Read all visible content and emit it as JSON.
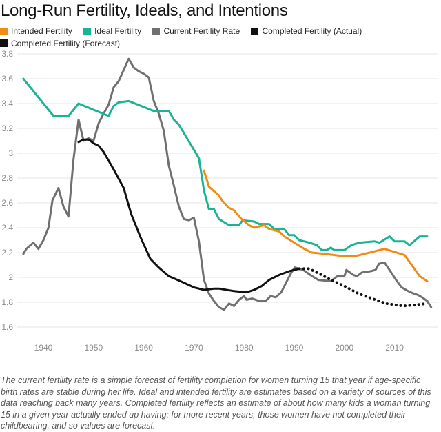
{
  "title": "Long-Run Fertility, Ideals, and Intentions",
  "note": "The current fertility rate is a simple forecast of fertility completion for women turning 15 that year if age-specific birth rates are stable during her life. Ideal and intended fertility are estimates based on a variety of sources of this data reaching back many years. Completed fertility reflects an estimate of about how many kids a woman turning 15 in a given year actually ended up having; for more recent years, those women have not completed their childbearing, and so values are forecast.",
  "chart_data": {
    "type": "line",
    "title": "Long-Run Fertility, Ideals, and Intentions",
    "xlabel": "",
    "ylabel": "",
    "xlim": [
      1935,
      2018
    ],
    "ylim": [
      1.5,
      3.8
    ],
    "xticks": [
      1940,
      1950,
      1960,
      1970,
      1980,
      1990,
      2000,
      2010
    ],
    "yticks": [
      1.6,
      1.8,
      2,
      2.2,
      2.4,
      2.6,
      2.8,
      3,
      3.2,
      3.4,
      3.6,
      3.8
    ],
    "ytick_labels": [
      "1.6",
      "1.8",
      "2",
      "2.2",
      "2.4",
      "2.6",
      "2.8",
      "3",
      "3.2",
      "3.4",
      "3.6",
      "3.8"
    ],
    "grid": true,
    "legend_position": "top-left",
    "series": [
      {
        "name": "Intended Fertility",
        "color": "#f28b14",
        "style": "solid",
        "points": [
          [
            1972,
            2.86
          ],
          [
            1973,
            2.73
          ],
          [
            1975,
            2.66
          ],
          [
            1975.6,
            2.62
          ],
          [
            1977,
            2.56
          ],
          [
            1978,
            2.54
          ],
          [
            1979.5,
            2.47
          ],
          [
            1981,
            2.42
          ],
          [
            1982,
            2.4
          ],
          [
            1984,
            2.42
          ],
          [
            1985,
            2.39
          ],
          [
            1987,
            2.37
          ],
          [
            1988,
            2.33
          ],
          [
            1992,
            2.23
          ],
          [
            1993.5,
            2.2
          ],
          [
            1996,
            2.19
          ],
          [
            2000,
            2.17
          ],
          [
            2002,
            2.17
          ],
          [
            2008,
            2.23
          ],
          [
            2012,
            2.18
          ],
          [
            2015,
            2.01
          ],
          [
            2016.5,
            1.97
          ]
        ]
      },
      {
        "name": "Ideal Fertility",
        "color": "#1ab394",
        "style": "solid",
        "points": [
          [
            1936,
            3.6
          ],
          [
            1942,
            3.3
          ],
          [
            1945,
            3.3
          ],
          [
            1947,
            3.4
          ],
          [
            1953,
            3.3
          ],
          [
            1954,
            3.38
          ],
          [
            1955,
            3.41
          ],
          [
            1957,
            3.42
          ],
          [
            1962,
            3.34
          ],
          [
            1965,
            3.34
          ],
          [
            1966,
            3.27
          ],
          [
            1967,
            3.23
          ],
          [
            1971,
            2.96
          ],
          [
            1972,
            2.7
          ],
          [
            1973,
            2.55
          ],
          [
            1974,
            2.55
          ],
          [
            1975,
            2.47
          ],
          [
            1977,
            2.42
          ],
          [
            1979,
            2.42
          ],
          [
            1979.7,
            2.46
          ],
          [
            1982,
            2.45
          ],
          [
            1983,
            2.43
          ],
          [
            1985,
            2.43
          ],
          [
            1986,
            2.39
          ],
          [
            1988,
            2.39
          ],
          [
            1989,
            2.34
          ],
          [
            1990,
            2.34
          ],
          [
            1991,
            2.3
          ],
          [
            1993,
            2.28
          ],
          [
            1994.5,
            2.26
          ],
          [
            1995.5,
            2.22
          ],
          [
            1996.5,
            2.22
          ],
          [
            1997.3,
            2.24
          ],
          [
            1998,
            2.22
          ],
          [
            2000,
            2.22
          ],
          [
            2001.4,
            2.26
          ],
          [
            2003,
            2.28
          ],
          [
            2006,
            2.29
          ],
          [
            2007,
            2.28
          ],
          [
            2009,
            2.33
          ],
          [
            2010,
            2.29
          ],
          [
            2012,
            2.29
          ],
          [
            2013,
            2.26
          ],
          [
            2015,
            2.33
          ],
          [
            2016.5,
            2.33
          ]
        ]
      },
      {
        "name": "Current Fertility Rate",
        "color": "#707070",
        "style": "solid",
        "points": [
          [
            1936,
            2.19
          ],
          [
            1936.6,
            2.23
          ],
          [
            1938,
            2.28
          ],
          [
            1939,
            2.23
          ],
          [
            1940,
            2.3
          ],
          [
            1941,
            2.4
          ],
          [
            1941.8,
            2.62
          ],
          [
            1943,
            2.72
          ],
          [
            1944,
            2.57
          ],
          [
            1945,
            2.49
          ],
          [
            1946,
            2.95
          ],
          [
            1947,
            3.27
          ],
          [
            1948,
            3.1
          ],
          [
            1949,
            3.12
          ],
          [
            1950,
            3.1
          ],
          [
            1951,
            3.24
          ],
          [
            1952,
            3.32
          ],
          [
            1953,
            3.39
          ],
          [
            1954,
            3.53
          ],
          [
            1955,
            3.58
          ],
          [
            1957,
            3.76
          ],
          [
            1958,
            3.69
          ],
          [
            1959,
            3.66
          ],
          [
            1960,
            3.64
          ],
          [
            1961,
            3.61
          ],
          [
            1962,
            3.42
          ],
          [
            1963,
            3.32
          ],
          [
            1964,
            3.18
          ],
          [
            1965,
            2.9
          ],
          [
            1966,
            2.74
          ],
          [
            1967,
            2.57
          ],
          [
            1968,
            2.47
          ],
          [
            1969,
            2.46
          ],
          [
            1970,
            2.48
          ],
          [
            1971,
            2.29
          ],
          [
            1972,
            1.98
          ],
          [
            1973,
            1.87
          ],
          [
            1974,
            1.81
          ],
          [
            1975,
            1.76
          ],
          [
            1976,
            1.74
          ],
          [
            1977,
            1.79
          ],
          [
            1978,
            1.77
          ],
          [
            1979,
            1.82
          ],
          [
            1980,
            1.85
          ],
          [
            1980.5,
            1.82
          ],
          [
            1981.6,
            1.83
          ],
          [
            1983,
            1.81
          ],
          [
            1984.3,
            1.81
          ],
          [
            1985.3,
            1.85
          ],
          [
            1986.3,
            1.84
          ],
          [
            1987.4,
            1.88
          ],
          [
            1988.4,
            1.96
          ],
          [
            1989.3,
            2.03
          ],
          [
            1990.1,
            2.08
          ],
          [
            1991.8,
            2.06
          ],
          [
            1993.2,
            2.02
          ],
          [
            1994.8,
            1.98
          ],
          [
            1997.3,
            1.97
          ],
          [
            1998.6,
            2.01
          ],
          [
            2000,
            2.01
          ],
          [
            2000.4,
            2.06
          ],
          [
            2001.8,
            2.02
          ],
          [
            2002.5,
            2.01
          ],
          [
            2003.5,
            2.04
          ],
          [
            2005.2,
            2.05
          ],
          [
            2006.2,
            2.06
          ],
          [
            2006.9,
            2.11
          ],
          [
            2008,
            2.12
          ],
          [
            2008.5,
            2.09
          ],
          [
            2010.3,
            1.98
          ],
          [
            2011.4,
            1.92
          ],
          [
            2012.7,
            1.89
          ],
          [
            2013.8,
            1.87
          ],
          [
            2014.6,
            1.86
          ],
          [
            2015.5,
            1.84
          ],
          [
            2016.5,
            1.81
          ],
          [
            2017.3,
            1.76
          ]
        ]
      },
      {
        "name": "Completed Fertility (Actual)",
        "color": "#111111",
        "style": "solid",
        "points": [
          [
            1947,
            3.09
          ],
          [
            1948,
            3.11
          ],
          [
            1949,
            3.11
          ],
          [
            1950,
            3.08
          ],
          [
            1951,
            3.06
          ],
          [
            1952,
            3.01
          ],
          [
            1954,
            2.87
          ],
          [
            1956,
            2.72
          ],
          [
            1957.5,
            2.51
          ],
          [
            1959.4,
            2.32
          ],
          [
            1961.3,
            2.15
          ],
          [
            1963,
            2.08
          ],
          [
            1965,
            2.01
          ],
          [
            1967.3,
            1.97
          ],
          [
            1970,
            1.92
          ],
          [
            1972,
            1.9
          ],
          [
            1974,
            1.91
          ],
          [
            1975,
            1.91
          ],
          [
            1978,
            1.89
          ],
          [
            1980.5,
            1.88
          ],
          [
            1982,
            1.9
          ],
          [
            1983.5,
            1.93
          ],
          [
            1985,
            1.98
          ],
          [
            1987,
            2.02
          ],
          [
            1989,
            2.05
          ],
          [
            1991,
            2.07
          ]
        ]
      },
      {
        "name": "Completed Fertility (Forecast)",
        "color": "#111111",
        "style": "dotted",
        "points": [
          [
            1991,
            2.07
          ],
          [
            1993,
            2.07
          ],
          [
            1995.5,
            2.02
          ],
          [
            1997.3,
            1.98
          ],
          [
            2000,
            1.93
          ],
          [
            2002.8,
            1.87
          ],
          [
            2005.5,
            1.83
          ],
          [
            2008.3,
            1.79
          ],
          [
            2011.7,
            1.77
          ],
          [
            2014.5,
            1.78
          ],
          [
            2016.5,
            1.79
          ]
        ]
      }
    ]
  }
}
